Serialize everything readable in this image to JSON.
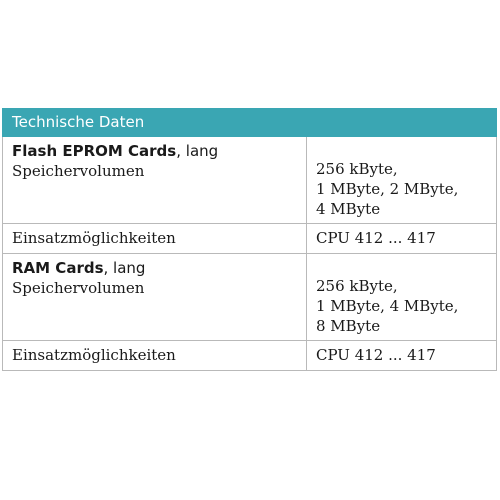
{
  "table": {
    "header": "Technische Daten",
    "groups": [
      {
        "title": "Flash EPROM Cards",
        "title_suffix": ", lang",
        "label": "Speichervolumen",
        "values": [
          "256 kByte,",
          "1 MByte, 2 MByte,",
          "4 MByte"
        ],
        "usage_label": "Einsatzmöglichkeiten",
        "usage_value": "CPU 412 ... 417"
      },
      {
        "title": "RAM Cards",
        "title_suffix": ", lang",
        "label": "Speichervolumen",
        "values": [
          "256 kByte,",
          "1 MByte, 4 MByte,",
          "8 MByte"
        ],
        "usage_label": "Einsatzmöglichkeiten",
        "usage_value": "CPU 412 ... 417"
      }
    ]
  },
  "colors": {
    "header_bg": "#3aa6b3",
    "border": "#b9b9b9"
  }
}
